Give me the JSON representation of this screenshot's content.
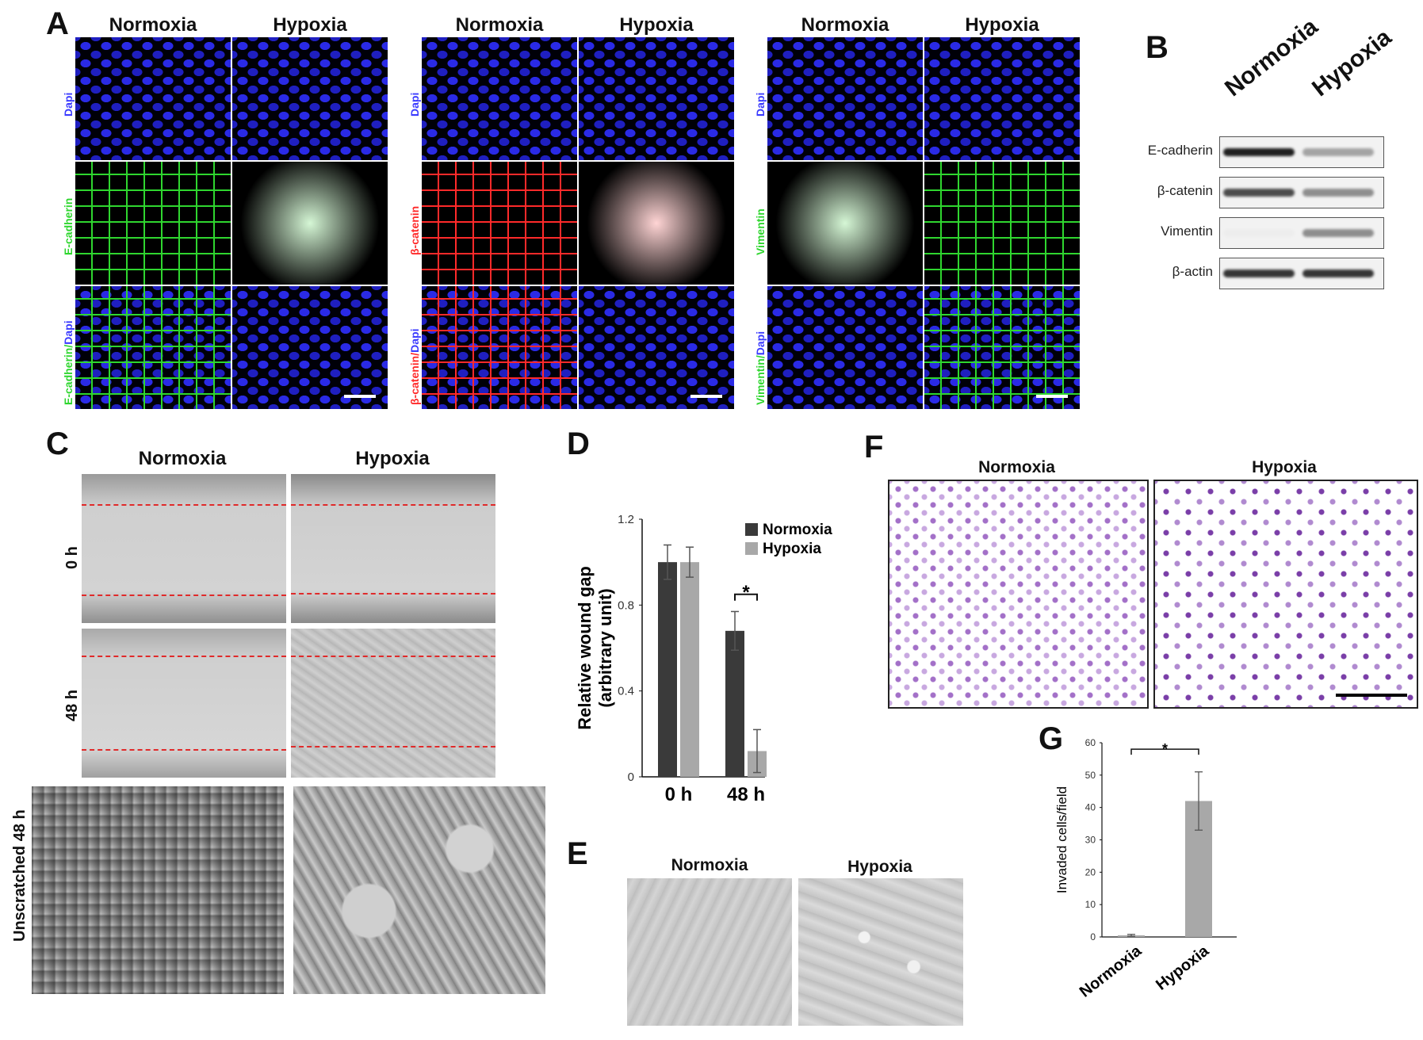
{
  "panels": {
    "A": "A",
    "B": "B",
    "C": "C",
    "D": "D",
    "E": "E",
    "F": "F",
    "G": "G"
  },
  "panel_a": {
    "col_labels": [
      "Normoxia",
      "Hypoxia"
    ],
    "groups": [
      {
        "rows": [
          "Dapi",
          "E-cadherin",
          "E-cadherin/Dapi"
        ],
        "merge_a": "E-cadherin",
        "merge_b": "Dapi",
        "marker_color": "#2fd62f"
      },
      {
        "rows": [
          "Dapi",
          "β-catenin",
          "β-catenin/Dapi"
        ],
        "merge_a": "β-catenin",
        "merge_b": "Dapi",
        "marker_color": "#ff2a2a"
      },
      {
        "rows": [
          "Dapi",
          "Vimentin",
          "Vimentin/Dapi"
        ],
        "merge_a": "Vimentin",
        "merge_b": "Dapi",
        "marker_color": "#2fd62f"
      }
    ]
  },
  "panel_b": {
    "col_labels": [
      "Normoxia",
      "Hypoxia"
    ],
    "bands": [
      "E-cadherin",
      "β-catenin",
      "Vimentin",
      "β-actin"
    ]
  },
  "panel_c": {
    "col_labels": [
      "Normoxia",
      "Hypoxia"
    ],
    "row_labels": [
      "0 h",
      "48 h",
      "Unscratched 48 h"
    ]
  },
  "panel_e": {
    "col_labels": [
      "Normoxia",
      "Hypoxia"
    ]
  },
  "panel_f": {
    "col_labels": [
      "Normoxia",
      "Hypoxia"
    ]
  },
  "colors": {
    "normoxia": "#3a3a3a",
    "hypoxia": "#a8a8a8",
    "dapi_label": "#3b3bff"
  },
  "chart_data": [
    {
      "id": "D",
      "type": "bar",
      "categories": [
        "0 h",
        "48 h"
      ],
      "series": [
        {
          "name": "Normoxia",
          "values": [
            1.0,
            0.68
          ],
          "errors": [
            0.08,
            0.09
          ]
        },
        {
          "name": "Hypoxia",
          "values": [
            1.0,
            0.12
          ],
          "errors": [
            0.07,
            0.1
          ]
        }
      ],
      "ylabel": "Relative wound gap (arbitrary unit)",
      "ylim": [
        0,
        1.2
      ],
      "yticks": [
        "0",
        "0.4",
        "0.8",
        "1.2"
      ],
      "legend": "top-right",
      "significance": "*"
    },
    {
      "id": "G",
      "type": "bar",
      "categories": [
        "Normoxia",
        "Hypoxia"
      ],
      "values": [
        0.5,
        42
      ],
      "errors": [
        0.3,
        9
      ],
      "ylabel": "Invaded cells/field",
      "ylim": [
        0,
        60
      ],
      "yticks": [
        "0",
        "10",
        "20",
        "30",
        "40",
        "50",
        "60"
      ],
      "significance": "*"
    }
  ]
}
